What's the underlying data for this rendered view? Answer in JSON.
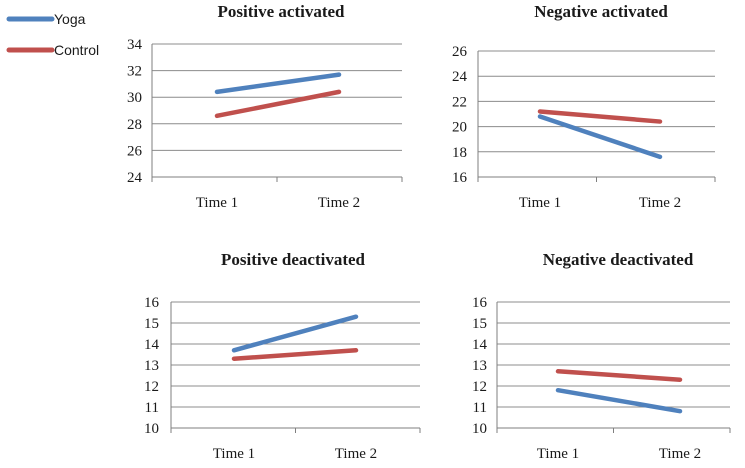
{
  "legend": [
    {
      "name": "Yoga",
      "color": "#4F81BD"
    },
    {
      "name": "Control",
      "color": "#C0504D"
    }
  ],
  "chart_data": [
    {
      "type": "line",
      "title": "Positive activated",
      "categories": [
        "Time 1",
        "Time 2"
      ],
      "ylim": [
        24,
        34
      ],
      "yticks": [
        24,
        26,
        28,
        30,
        32,
        34
      ],
      "series": [
        {
          "name": "Yoga",
          "values": [
            30.4,
            31.7
          ]
        },
        {
          "name": "Control",
          "values": [
            28.6,
            30.4
          ]
        }
      ]
    },
    {
      "type": "line",
      "title": "Negative activated",
      "categories": [
        "Time 1",
        "Time 2"
      ],
      "ylim": [
        16,
        26
      ],
      "yticks": [
        16,
        18,
        20,
        22,
        24,
        26
      ],
      "series": [
        {
          "name": "Yoga",
          "values": [
            20.8,
            17.6
          ]
        },
        {
          "name": "Control",
          "values": [
            21.2,
            20.4
          ]
        }
      ]
    },
    {
      "type": "line",
      "title": "Positive deactivated",
      "categories": [
        "Time 1",
        "Time 2"
      ],
      "ylim": [
        10,
        16
      ],
      "yticks": [
        10,
        11,
        12,
        13,
        14,
        15,
        16
      ],
      "series": [
        {
          "name": "Yoga",
          "values": [
            13.7,
            15.3
          ]
        },
        {
          "name": "Control",
          "values": [
            13.3,
            13.7
          ]
        }
      ]
    },
    {
      "type": "line",
      "title": "Negative deactivated",
      "categories": [
        "Time 1",
        "Time 2"
      ],
      "ylim": [
        10,
        16
      ],
      "yticks": [
        10,
        11,
        12,
        13,
        14,
        15,
        16
      ],
      "series": [
        {
          "name": "Yoga",
          "values": [
            11.8,
            10.8
          ]
        },
        {
          "name": "Control",
          "values": [
            12.7,
            12.3
          ]
        }
      ]
    }
  ]
}
